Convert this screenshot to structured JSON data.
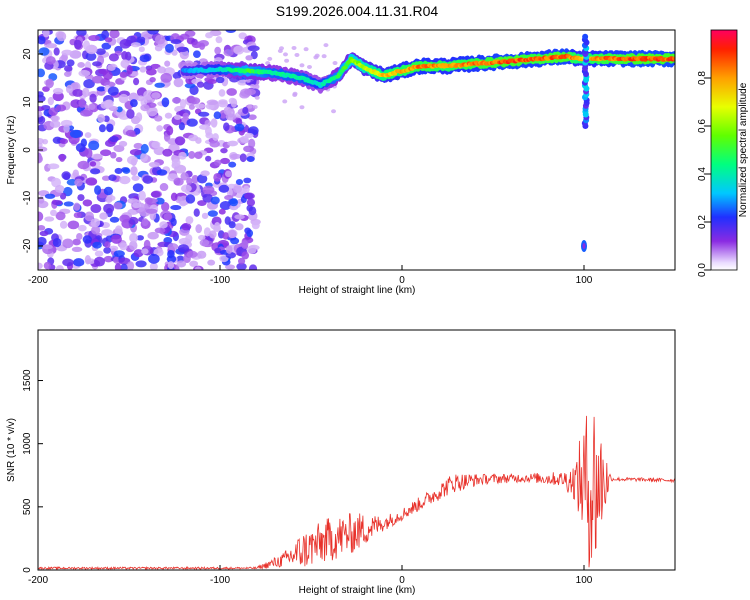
{
  "chart_data": [
    {
      "type": "heatmap",
      "title": "S199.2026.004.11.31.R04",
      "xlabel": "Height of straight line (km)",
      "ylabel": "Frequency (Hz)",
      "xlim": [
        -200,
        150
      ],
      "ylim": [
        -25,
        25
      ],
      "xticks": [
        -200,
        -100,
        0,
        100
      ],
      "yticks": [
        -20,
        -10,
        0,
        10,
        20
      ],
      "colorbar": {
        "label": "Normalized spectral amplitude",
        "range": [
          0.0,
          1.0
        ],
        "ticks": [
          0.0,
          0.2,
          0.4,
          0.6,
          0.8
        ],
        "colormap": "rainbow-white-to-red"
      },
      "ridge": [
        {
          "x": -120,
          "freq": 16.5,
          "amp": 0.3
        },
        {
          "x": -100,
          "freq": 16.8,
          "amp": 0.4
        },
        {
          "x": -85,
          "freq": 16.5,
          "amp": 0.55
        },
        {
          "x": -70,
          "freq": 16.0,
          "amp": 0.45
        },
        {
          "x": -55,
          "freq": 15.0,
          "amp": 0.45
        },
        {
          "x": -45,
          "freq": 13.5,
          "amp": 0.4
        },
        {
          "x": -35,
          "freq": 15.5,
          "amp": 0.5
        },
        {
          "x": -28,
          "freq": 19.0,
          "amp": 0.6
        },
        {
          "x": -20,
          "freq": 17.0,
          "amp": 0.7
        },
        {
          "x": -10,
          "freq": 15.5,
          "amp": 0.8
        },
        {
          "x": 0,
          "freq": 16.5,
          "amp": 0.85
        },
        {
          "x": 10,
          "freq": 17.5,
          "amp": 0.9
        },
        {
          "x": 25,
          "freq": 17.5,
          "amp": 0.85
        },
        {
          "x": 40,
          "freq": 18.0,
          "amp": 0.9
        },
        {
          "x": 60,
          "freq": 18.5,
          "amp": 0.95
        },
        {
          "x": 75,
          "freq": 19.0,
          "amp": 0.9
        },
        {
          "x": 90,
          "freq": 19.5,
          "amp": 0.95
        },
        {
          "x": 98,
          "freq": 19.0,
          "amp": 0.8
        },
        {
          "x": 110,
          "freq": 19.0,
          "amp": 0.9
        },
        {
          "x": 130,
          "freq": 19.0,
          "amp": 0.95
        },
        {
          "x": 150,
          "freq": 19.0,
          "amp": 0.95
        }
      ],
      "noise_region": {
        "x_range": [
          -200,
          -85
        ],
        "freq_range": [
          -25,
          25
        ],
        "amp": [
          0.05,
          0.25
        ]
      }
    },
    {
      "type": "line",
      "xlabel": "Height of straight line (km)",
      "ylabel": "SNR (10 * v/v)",
      "xlim": [
        -200,
        150
      ],
      "ylim": [
        0,
        1900
      ],
      "xticks": [
        -200,
        -100,
        0,
        100
      ],
      "yticks": [
        0,
        500,
        1000,
        1500
      ],
      "color": "#e8312a",
      "envelope": [
        {
          "x": -200,
          "mean": 15,
          "spread": 8
        },
        {
          "x": -80,
          "mean": 15,
          "spread": 8
        },
        {
          "x": -65,
          "mean": 80,
          "spread": 60
        },
        {
          "x": -55,
          "mean": 150,
          "spread": 150
        },
        {
          "x": -40,
          "mean": 240,
          "spread": 180
        },
        {
          "x": -25,
          "mean": 300,
          "spread": 160
        },
        {
          "x": -10,
          "mean": 370,
          "spread": 60
        },
        {
          "x": 0,
          "mean": 440,
          "spread": 50
        },
        {
          "x": 15,
          "mean": 570,
          "spread": 60
        },
        {
          "x": 28,
          "mean": 690,
          "spread": 80
        },
        {
          "x": 45,
          "mean": 720,
          "spread": 40
        },
        {
          "x": 70,
          "mean": 730,
          "spread": 35
        },
        {
          "x": 88,
          "mean": 720,
          "spread": 60
        },
        {
          "x": 95,
          "mean": 700,
          "spread": 150
        },
        {
          "x": 100,
          "mean": 700,
          "spread": 500
        },
        {
          "x": 105,
          "mean": 650,
          "spread": 800
        },
        {
          "x": 110,
          "mean": 700,
          "spread": 400
        },
        {
          "x": 115,
          "mean": 720,
          "spread": 15
        },
        {
          "x": 150,
          "mean": 710,
          "spread": 15
        }
      ]
    }
  ]
}
